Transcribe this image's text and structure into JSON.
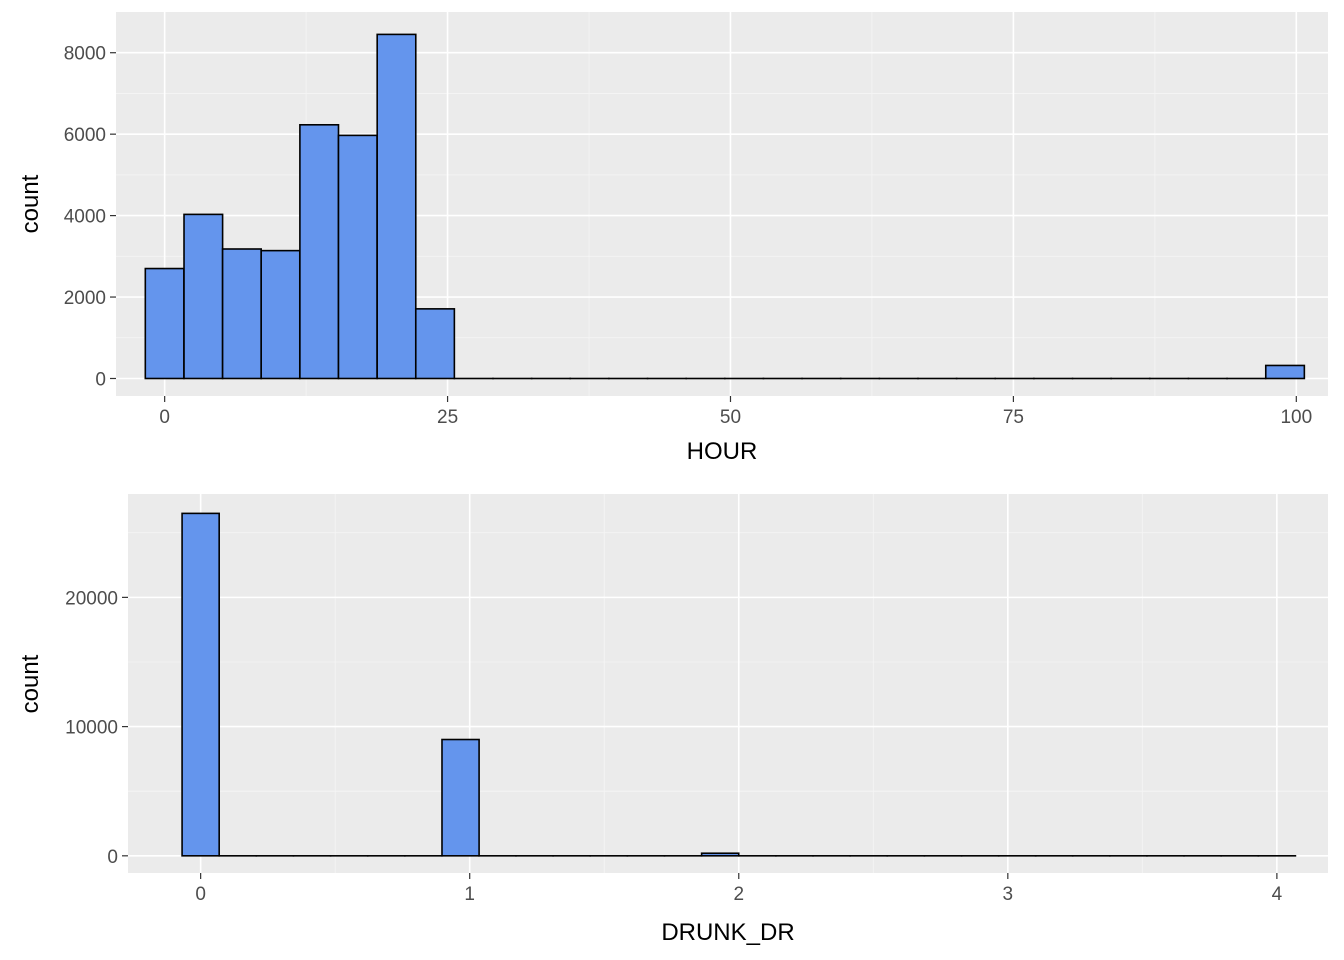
{
  "chart_data": [
    {
      "type": "bar",
      "subtype": "histogram",
      "xlabel": "HOUR",
      "ylabel": "count",
      "xlim": [
        -4.3,
        102.8
      ],
      "ylim": [
        -430,
        9000
      ],
      "x_ticks": [
        0,
        25,
        50,
        75,
        100
      ],
      "y_ticks": [
        0,
        2000,
        4000,
        6000,
        8000
      ],
      "bin_width": 3.41,
      "bins": [
        {
          "start": -1.71,
          "count": 2700
        },
        {
          "start": 1.71,
          "count": 4030
        },
        {
          "start": 5.12,
          "count": 3180
        },
        {
          "start": 8.53,
          "count": 3140
        },
        {
          "start": 11.95,
          "count": 6230
        },
        {
          "start": 15.36,
          "count": 5970
        },
        {
          "start": 18.78,
          "count": 8450
        },
        {
          "start": 22.19,
          "count": 1710
        },
        {
          "start": 25.6,
          "count": 0
        },
        {
          "start": 29.02,
          "count": 0
        },
        {
          "start": 32.43,
          "count": 0
        },
        {
          "start": 35.84,
          "count": 0
        },
        {
          "start": 39.26,
          "count": 0
        },
        {
          "start": 42.67,
          "count": 0
        },
        {
          "start": 46.09,
          "count": 0
        },
        {
          "start": 49.5,
          "count": 0
        },
        {
          "start": 52.91,
          "count": 0
        },
        {
          "start": 56.33,
          "count": 0
        },
        {
          "start": 59.74,
          "count": 0
        },
        {
          "start": 63.16,
          "count": 0
        },
        {
          "start": 66.57,
          "count": 0
        },
        {
          "start": 69.98,
          "count": 0
        },
        {
          "start": 73.4,
          "count": 0
        },
        {
          "start": 76.81,
          "count": 0
        },
        {
          "start": 80.23,
          "count": 0
        },
        {
          "start": 83.64,
          "count": 0
        },
        {
          "start": 87.05,
          "count": 0
        },
        {
          "start": 90.47,
          "count": 0
        },
        {
          "start": 93.88,
          "count": 0
        },
        {
          "start": 97.3,
          "count": 320
        }
      ],
      "fill": "#6495ed",
      "outline": "#000000",
      "panel_background": "#ebebeb",
      "grid": true
    },
    {
      "type": "bar",
      "subtype": "histogram",
      "xlabel": "DRUNK_DR",
      "ylabel": "count",
      "xlim": [
        -0.27,
        4.19
      ],
      "ylim": [
        -1330,
        28000
      ],
      "x_ticks": [
        0,
        1,
        2,
        3,
        4
      ],
      "y_ticks": [
        0,
        10000,
        20000
      ],
      "bin_width": 0.1379,
      "bins": [
        {
          "start": -0.069,
          "count": 26500
        },
        {
          "start": 0.069,
          "count": 0
        },
        {
          "start": 0.207,
          "count": 0
        },
        {
          "start": 0.345,
          "count": 0
        },
        {
          "start": 0.483,
          "count": 0
        },
        {
          "start": 0.621,
          "count": 0
        },
        {
          "start": 0.759,
          "count": 0
        },
        {
          "start": 0.897,
          "count": 9000
        },
        {
          "start": 1.034,
          "count": 0
        },
        {
          "start": 1.172,
          "count": 0
        },
        {
          "start": 1.31,
          "count": 0
        },
        {
          "start": 1.448,
          "count": 0
        },
        {
          "start": 1.586,
          "count": 0
        },
        {
          "start": 1.724,
          "count": 0
        },
        {
          "start": 1.862,
          "count": 200
        },
        {
          "start": 2.0,
          "count": 0
        },
        {
          "start": 2.138,
          "count": 0
        },
        {
          "start": 2.276,
          "count": 0
        },
        {
          "start": 2.414,
          "count": 0
        },
        {
          "start": 2.552,
          "count": 0
        },
        {
          "start": 2.69,
          "count": 0
        },
        {
          "start": 2.828,
          "count": 0
        },
        {
          "start": 2.966,
          "count": 0
        },
        {
          "start": 3.103,
          "count": 0
        },
        {
          "start": 3.241,
          "count": 0
        },
        {
          "start": 3.379,
          "count": 0
        },
        {
          "start": 3.517,
          "count": 0
        },
        {
          "start": 3.655,
          "count": 0
        },
        {
          "start": 3.793,
          "count": 0
        },
        {
          "start": 3.931,
          "count": 0
        }
      ],
      "fill": "#6495ed",
      "outline": "#000000",
      "panel_background": "#ebebeb",
      "grid": true
    }
  ]
}
